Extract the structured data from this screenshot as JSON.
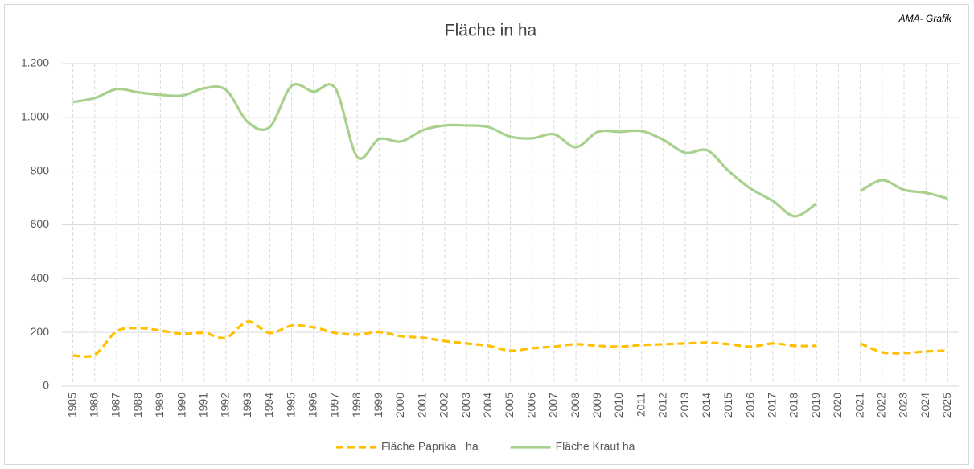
{
  "chart_data": {
    "type": "line",
    "title": "Fläche in ha",
    "annotation": "AMA- Grafik",
    "categories": [
      "1985",
      "1986",
      "1987",
      "1988",
      "1989",
      "1990",
      "1991",
      "1992",
      "1993",
      "1994",
      "1995",
      "1996",
      "1997",
      "1998",
      "1999",
      "2000",
      "2001",
      "2002",
      "2003",
      "2004",
      "2005",
      "2006",
      "2007",
      "2008",
      "2009",
      "2010",
      "2011",
      "2012",
      "2013",
      "2014",
      "2015",
      "2016",
      "2017",
      "2018",
      "2019",
      "2020",
      "2021",
      "2022",
      "2023",
      "2024",
      "2025"
    ],
    "series": [
      {
        "name": "Fläche Paprika   ha",
        "color": "#ffc000",
        "dash": true,
        "values": [
          114,
          117,
          204,
          216,
          207,
          195,
          198,
          180,
          240,
          198,
          225,
          219,
          198,
          192,
          201,
          186,
          180,
          168,
          159,
          150,
          132,
          141,
          147,
          156,
          150,
          147,
          153,
          156,
          159,
          162,
          156,
          147,
          159,
          150,
          150,
          null,
          159,
          126,
          123,
          129,
          132
        ]
      },
      {
        "name": "Fläche Kraut ha",
        "color": "#a9d18e",
        "dash": false,
        "values": [
          1057,
          1072,
          1105,
          1093,
          1084,
          1081,
          1108,
          1102,
          982,
          964,
          1117,
          1096,
          1108,
          853,
          919,
          910,
          952,
          970,
          970,
          964,
          928,
          922,
          937,
          889,
          946,
          946,
          949,
          916,
          868,
          877,
          799,
          734,
          689,
          632,
          680,
          null,
          725,
          766,
          730,
          719,
          698
        ]
      }
    ],
    "ylim": [
      0,
      1200
    ],
    "yticks": [
      0,
      200,
      400,
      600,
      800,
      {
        "value": 1000,
        "label": "1.000"
      },
      {
        "value": 1200,
        "label": "1.200"
      }
    ],
    "grid": true,
    "legend": "bottom"
  }
}
